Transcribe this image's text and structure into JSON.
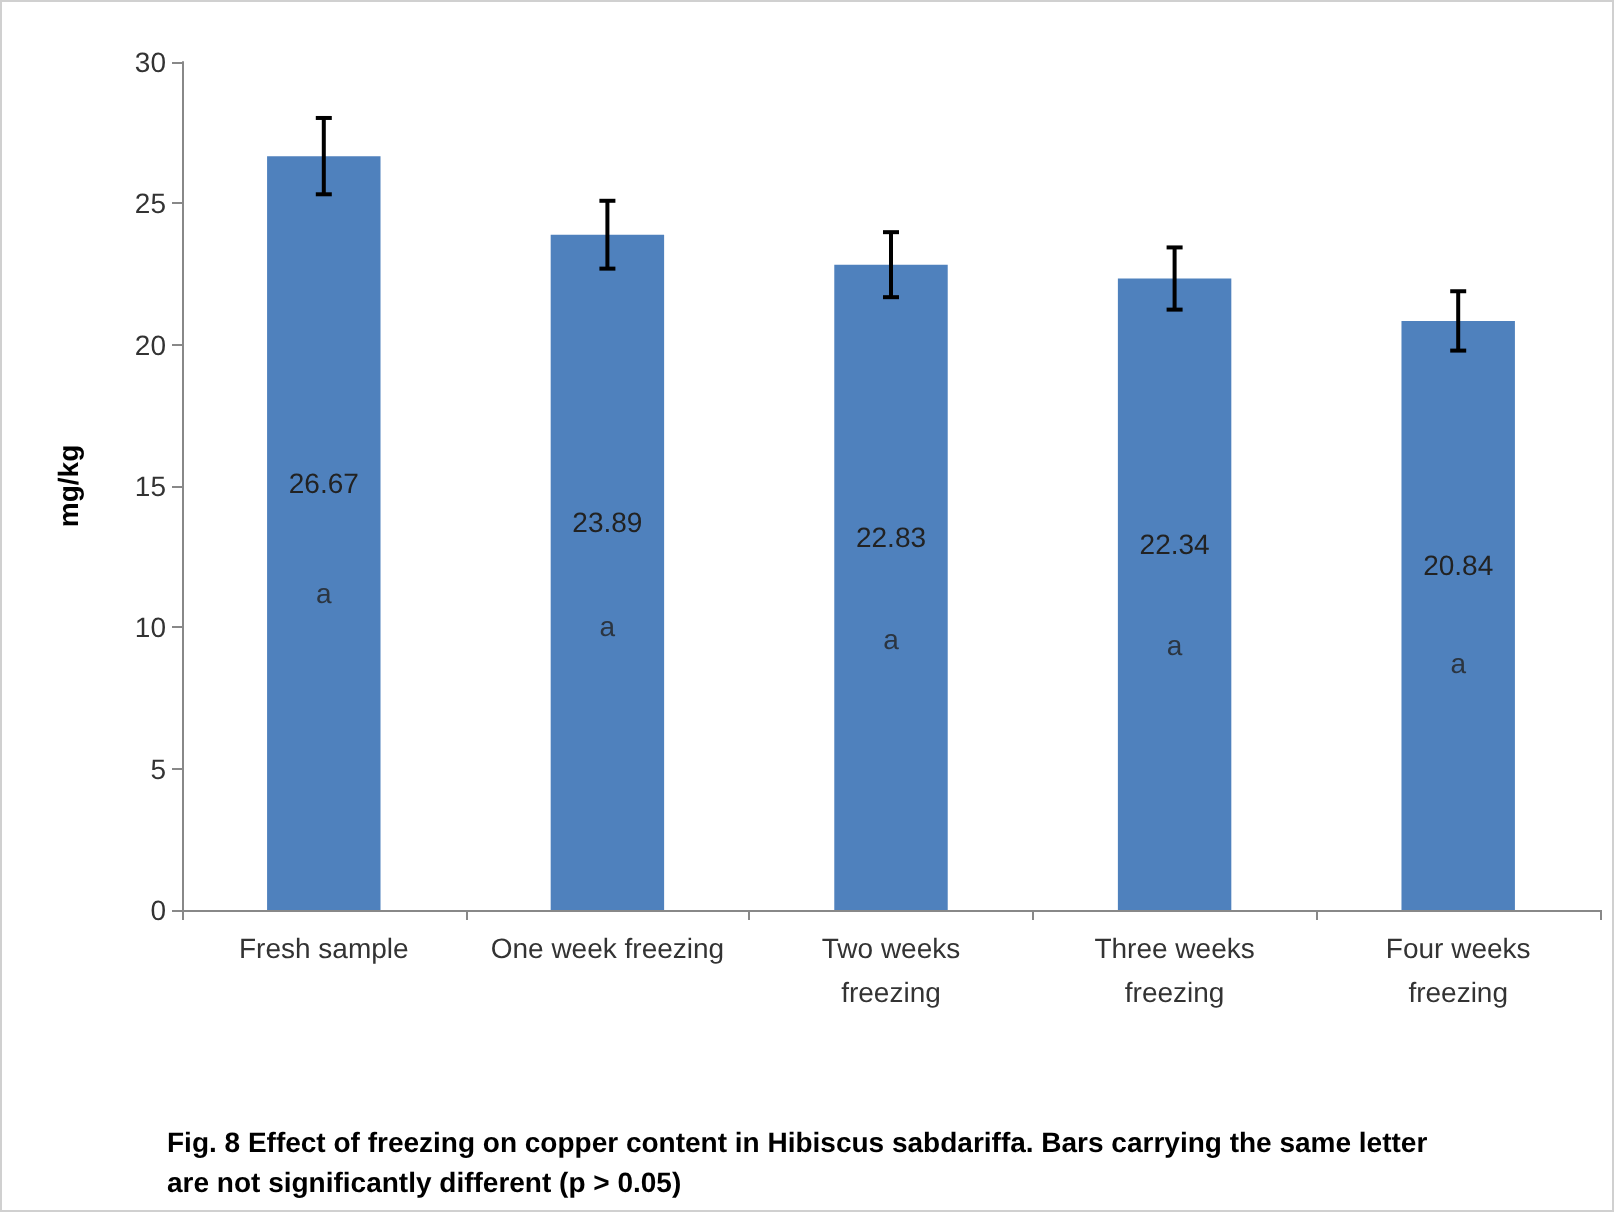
{
  "chart_data": {
    "type": "bar",
    "ylabel": "mg/kg",
    "categories": [
      "Fresh sample",
      "One week freezing",
      "Two weeks\nfreezing",
      "Three weeks\nfreezing",
      "Four weeks\nfreezing"
    ],
    "values": [
      26.67,
      23.89,
      22.83,
      22.34,
      20.84
    ],
    "errors": [
      1.35,
      1.2,
      1.15,
      1.1,
      1.05
    ],
    "color": "#4f81bd",
    "data_labels": true,
    "grid": false,
    "ylim": [
      0,
      30
    ],
    "yticks": [
      0,
      5,
      10,
      15,
      20,
      25,
      30
    ],
    "annotations": [
      "a",
      "a",
      "a",
      "a",
      "a",
      "Fig. 8 Effect of freezing on copper content in Hibiscus sabdariffa. Bars carrying the same letter are not significantly different (p > 0.05)"
    ]
  }
}
